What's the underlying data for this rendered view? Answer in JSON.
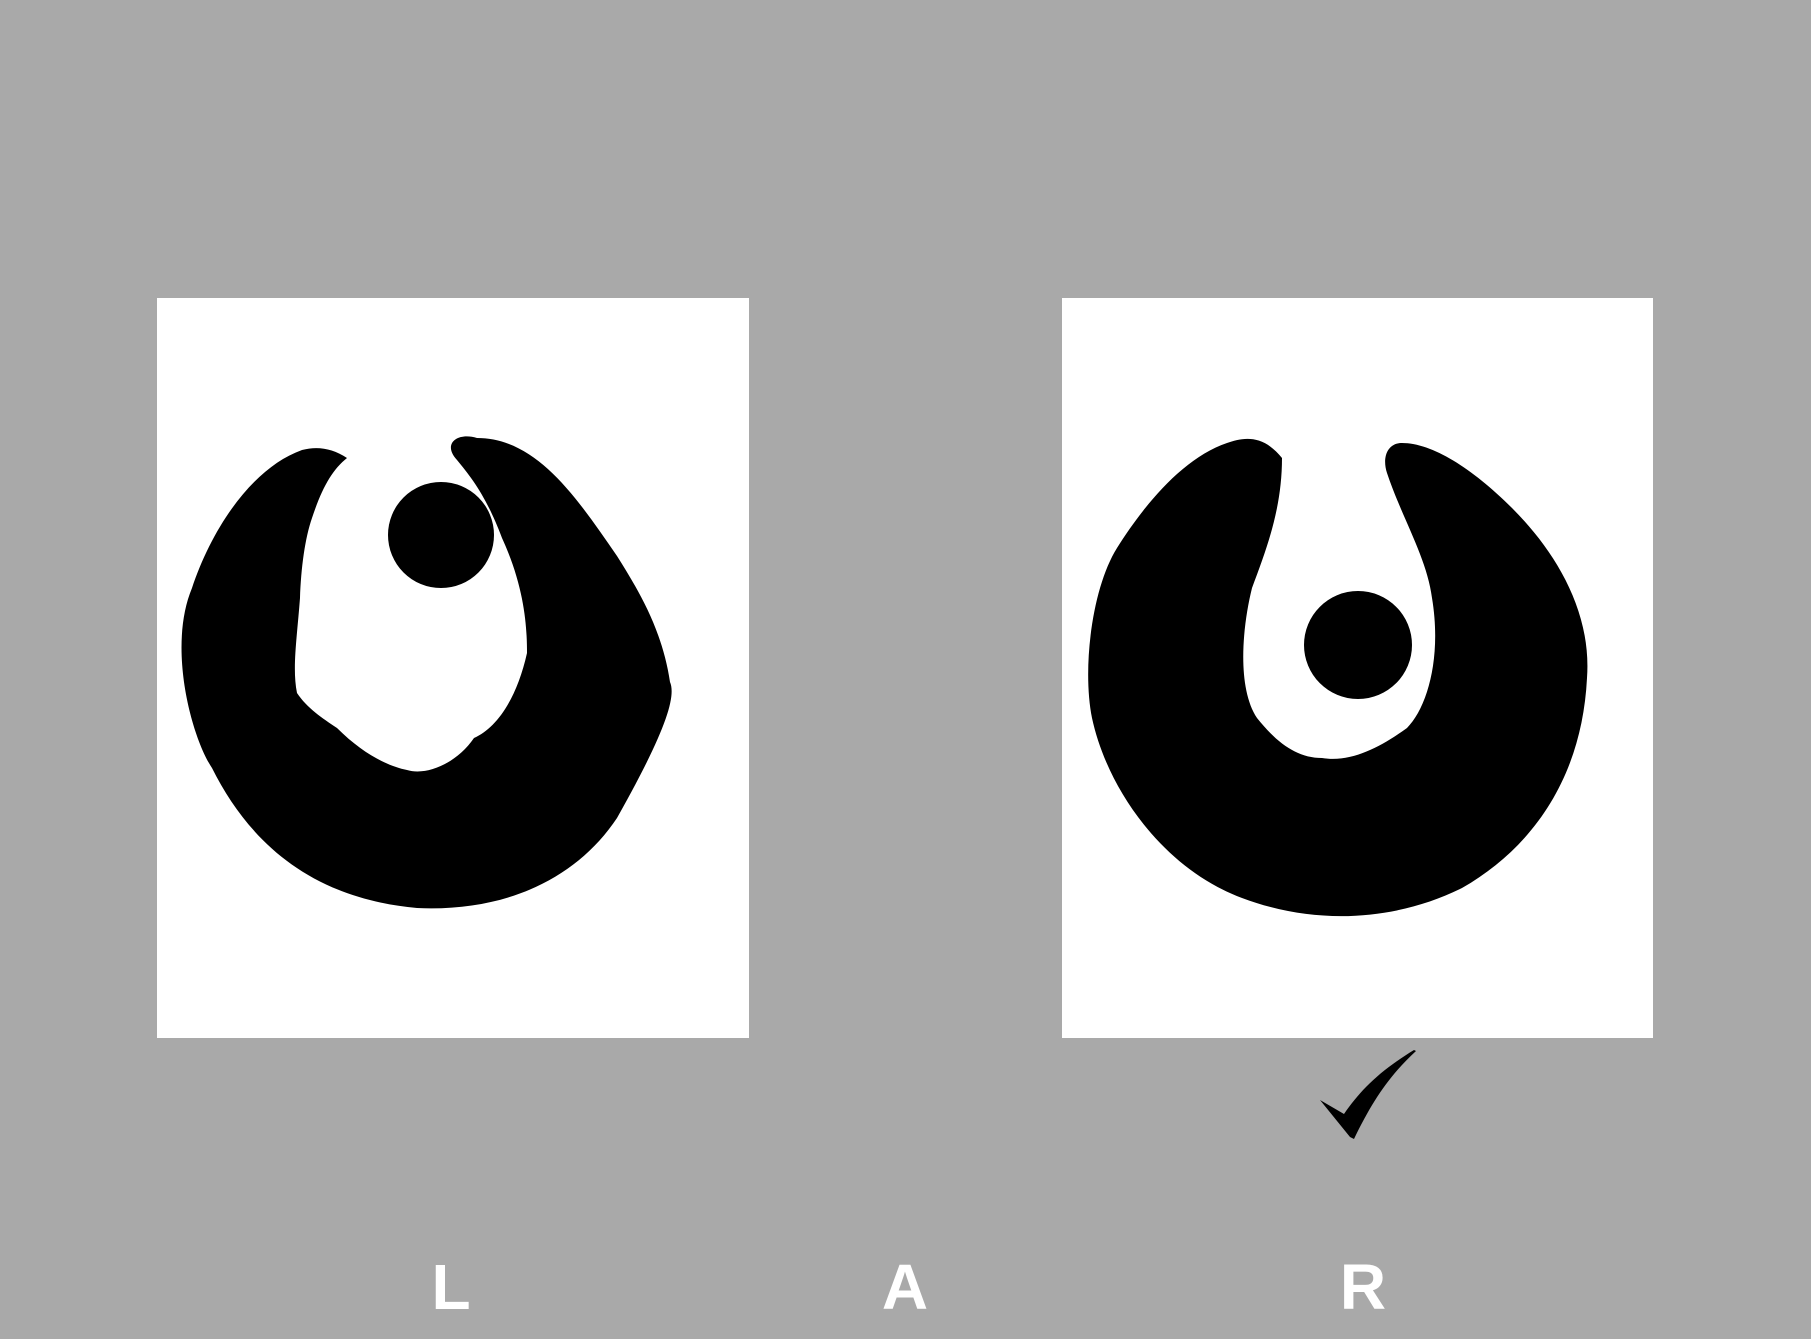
{
  "cards": [
    {
      "id": "left",
      "icon": "crescent-with-dot-icon",
      "dot_position": "upper"
    },
    {
      "id": "right",
      "icon": "crescent-with-dot-icon",
      "dot_position": "lower"
    }
  ],
  "selection_mark": {
    "icon": "checkmark-icon",
    "selected": "R"
  },
  "choices": [
    {
      "label": "L"
    },
    {
      "label": "A"
    },
    {
      "label": "R"
    }
  ],
  "colors": {
    "background": "#a9a9a9",
    "card": "#ffffff",
    "shape": "#000000",
    "label": "#ffffff"
  }
}
